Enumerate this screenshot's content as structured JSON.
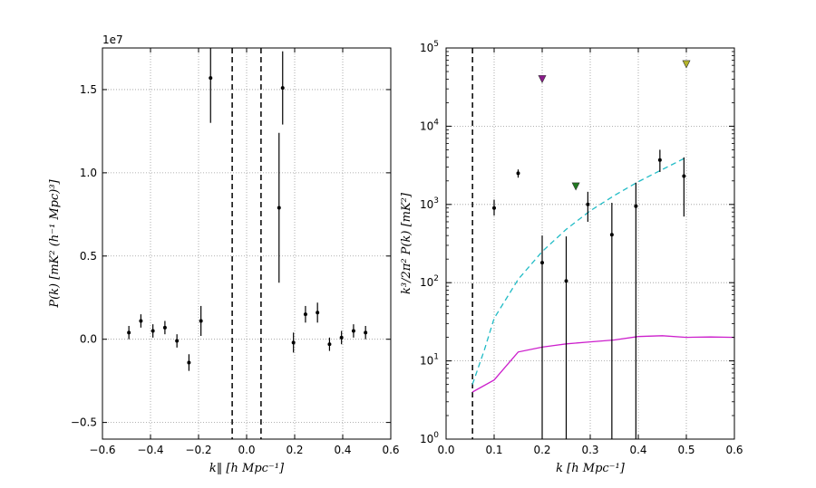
{
  "chart_data": [
    {
      "type": "scatter",
      "panel": "left",
      "offset_text": "1e7",
      "xlabel": "k‖ [h Mpc⁻¹]",
      "ylabel": "P(k) [mK² (h⁻¹ Mpc)³]",
      "xlim": [
        -0.6,
        0.6
      ],
      "ylim": [
        -0.6,
        1.75
      ],
      "y_scale_factor": 10000000,
      "x_ticks": [
        -0.6,
        -0.4,
        -0.2,
        0.0,
        0.2,
        0.4,
        0.6
      ],
      "x_tick_labels": [
        "−0.6",
        "−0.4",
        "−0.2",
        "0.0",
        "0.2",
        "0.4",
        "0.6"
      ],
      "y_ticks": [
        -0.5,
        0.0,
        0.5,
        1.0,
        1.5
      ],
      "y_tick_labels": [
        "−0.5",
        "0.0",
        "0.5",
        "1.0",
        "1.5"
      ],
      "grid": true,
      "vlines_dashed": [
        -0.06,
        0.06
      ],
      "points": [
        {
          "x": -0.49,
          "y": 0.04,
          "err": 0.04
        },
        {
          "x": -0.44,
          "y": 0.11,
          "err": 0.04
        },
        {
          "x": -0.39,
          "y": 0.05,
          "err": 0.04
        },
        {
          "x": -0.34,
          "y": 0.07,
          "err": 0.04
        },
        {
          "x": -0.29,
          "y": -0.01,
          "err": 0.04
        },
        {
          "x": -0.24,
          "y": -0.14,
          "err": 0.05
        },
        {
          "x": -0.19,
          "y": 0.11,
          "err": 0.09
        },
        {
          "x": -0.15,
          "y": 1.57,
          "err": 0.27
        },
        {
          "x": 0.15,
          "y": 1.51,
          "err": 0.22
        },
        {
          "x": 0.135,
          "y": 0.79,
          "err": 0.45
        },
        {
          "x": 0.195,
          "y": -0.02,
          "err": 0.06
        },
        {
          "x": 0.245,
          "y": 0.15,
          "err": 0.05
        },
        {
          "x": 0.295,
          "y": 0.16,
          "err": 0.06
        },
        {
          "x": 0.345,
          "y": -0.03,
          "err": 0.04
        },
        {
          "x": 0.395,
          "y": 0.01,
          "err": 0.04
        },
        {
          "x": 0.445,
          "y": 0.05,
          "err": 0.04
        },
        {
          "x": 0.495,
          "y": 0.04,
          "err": 0.04
        }
      ]
    },
    {
      "type": "scatter",
      "panel": "right",
      "xlabel": "k [h Mpc⁻¹]",
      "ylabel": "k³/2π² P(k) [mK²]",
      "yscale": "log",
      "xlim": [
        0.0,
        0.6
      ],
      "ylim": [
        1,
        100000
      ],
      "x_ticks": [
        0.0,
        0.1,
        0.2,
        0.3,
        0.4,
        0.5,
        0.6
      ],
      "x_tick_labels": [
        "0.0",
        "0.1",
        "0.2",
        "0.3",
        "0.4",
        "0.5",
        "0.6"
      ],
      "y_ticks": [
        1,
        10,
        100,
        1000,
        10000,
        100000
      ],
      "y_tick_exponents": [
        "0",
        "1",
        "2",
        "3",
        "4",
        "5"
      ],
      "y_tick_base": "10",
      "grid": true,
      "vline_dashed": 0.055,
      "points": [
        {
          "x": 0.1,
          "y": 900,
          "lo": 720,
          "hi": 1150
        },
        {
          "x": 0.15,
          "y": 2500,
          "lo": 2200,
          "hi": 2800
        },
        {
          "x": 0.2,
          "y": 180,
          "lo": 1,
          "hi": 400
        },
        {
          "x": 0.25,
          "y": 105,
          "lo": 1,
          "hi": 390
        },
        {
          "x": 0.295,
          "y": 1000,
          "lo": 600,
          "hi": 1450
        },
        {
          "x": 0.345,
          "y": 410,
          "lo": 1,
          "hi": 1050
        },
        {
          "x": 0.395,
          "y": 950,
          "lo": 1,
          "hi": 1900
        },
        {
          "x": 0.445,
          "y": 3700,
          "lo": 2600,
          "hi": 5000
        },
        {
          "x": 0.495,
          "y": 2300,
          "lo": 700,
          "hi": 4000
        }
      ],
      "upper_limits": [
        {
          "x": 0.2,
          "y": 40000,
          "color": "#8b1a8b"
        },
        {
          "x": 0.27,
          "y": 1700,
          "color": "#1f7a1f"
        },
        {
          "x": 0.5,
          "y": 62000,
          "color": "#b5b52a"
        }
      ],
      "series": [
        {
          "name": "cyan-dashed",
          "color": "#22bcc6",
          "style": "dashed",
          "x": [
            0.055,
            0.08,
            0.1,
            0.15,
            0.2,
            0.25,
            0.3,
            0.35,
            0.4,
            0.45,
            0.5
          ],
          "y": [
            5,
            14,
            35,
            110,
            250,
            480,
            830,
            1300,
            1950,
            2800,
            4000
          ]
        },
        {
          "name": "magenta",
          "color": "#cc1fcc",
          "style": "solid",
          "x": [
            0.055,
            0.1,
            0.15,
            0.2,
            0.25,
            0.3,
            0.35,
            0.4,
            0.45,
            0.5,
            0.55,
            0.6
          ],
          "y": [
            4.0,
            5.7,
            13,
            15,
            16.5,
            17.5,
            18.5,
            20.5,
            21,
            20,
            20.2,
            20
          ]
        }
      ]
    }
  ]
}
